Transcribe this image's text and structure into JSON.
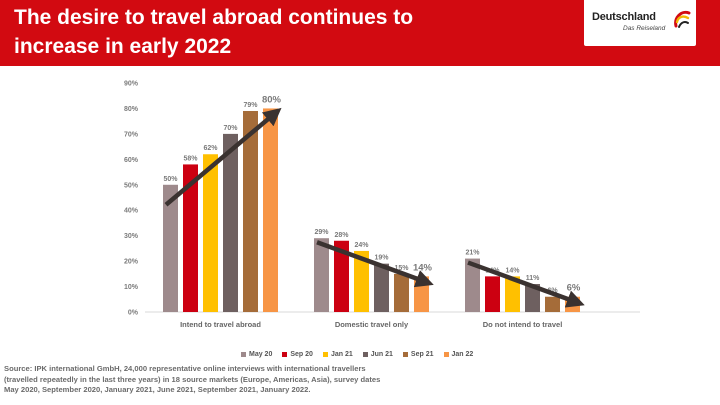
{
  "header": {
    "title_line1": "The desire to travel abroad continues to",
    "title_line2": "increase in early 2022",
    "logo_text": "Deutschland",
    "logo_subtext": "Das Reiseland"
  },
  "colors": {
    "banner": "#d20a11",
    "arrow": "#3a3230",
    "series": [
      "#9e8a8c",
      "#cc0011",
      "#ffc000",
      "#6e6060",
      "#a56c39",
      "#f79545"
    ]
  },
  "chart_data": {
    "type": "bar",
    "categories": [
      "Intend to travel abroad",
      "Domestic travel only",
      "Do not intend to travel"
    ],
    "series": [
      {
        "name": "May 20",
        "values": [
          50,
          29,
          21
        ]
      },
      {
        "name": "Sep 20",
        "values": [
          58,
          28,
          14
        ]
      },
      {
        "name": "Jan 21",
        "values": [
          62,
          24,
          14
        ]
      },
      {
        "name": "Jun 21",
        "values": [
          70,
          19,
          11
        ]
      },
      {
        "name": "Sep 21",
        "values": [
          79,
          15,
          6
        ]
      },
      {
        "name": "Jan 22",
        "values": [
          80,
          14,
          6
        ]
      }
    ],
    "data_labels": [
      [
        "50%",
        "58%",
        "62%",
        "70%",
        "79%",
        "80%"
      ],
      [
        "29%",
        "28%",
        "24%",
        "19%",
        "15%",
        "14%"
      ],
      [
        "21%",
        "14%",
        "14%",
        "11%",
        "6%",
        "6%"
      ]
    ],
    "y_ticks": [
      "0%",
      "10%",
      "20%",
      "30%",
      "40%",
      "50%",
      "60%",
      "70%",
      "80%",
      "90%"
    ],
    "ylim": [
      0,
      90
    ],
    "grid": false,
    "legend_position": "bottom",
    "trend_arrows": [
      {
        "category": 0,
        "direction": "up"
      },
      {
        "category": 1,
        "direction": "down"
      },
      {
        "category": 2,
        "direction": "down"
      }
    ]
  },
  "source_lines": [
    "Source: IPK international GmbH, 24,000 representative online interviews with international travellers",
    "(travelled repeatedly in the last three years) in 18 source markets (Europe, Americas, Asia), survey dates",
    "May 2020, September 2020, January 2021, June 2021, September 2021, January 2022."
  ]
}
